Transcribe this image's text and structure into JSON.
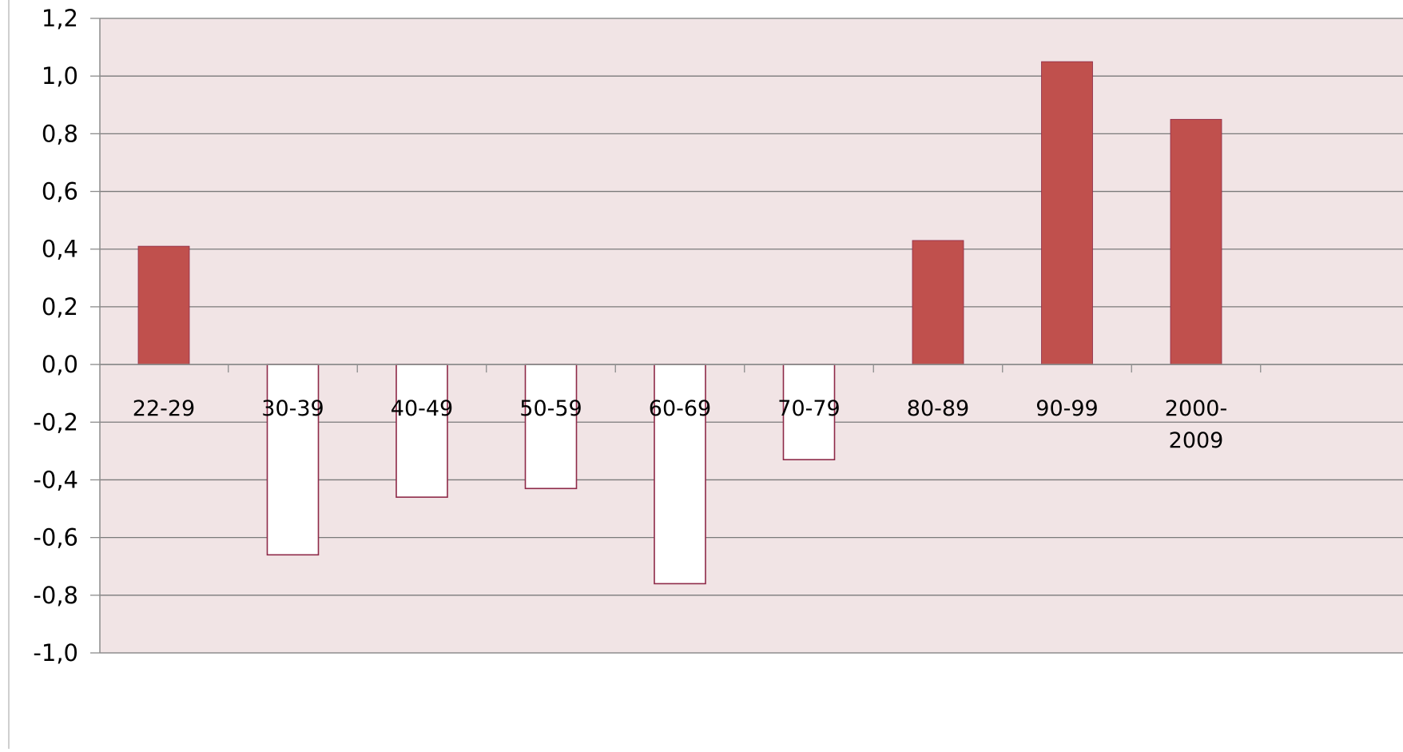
{
  "chart_data": {
    "type": "bar",
    "title": "",
    "xlabel": "",
    "ylabel": "",
    "categories": [
      "22-29",
      "30-39",
      "40-49",
      "50-59",
      "60-69",
      "70-79",
      "80-89",
      "90-99",
      "2000-\n2009"
    ],
    "values": [
      0.41,
      -0.66,
      -0.46,
      -0.43,
      -0.76,
      -0.33,
      0.43,
      1.05,
      0.85
    ],
    "ylim": [
      -1.0,
      1.2
    ],
    "ytick_labels": [
      "-1,0",
      "-0,8",
      "-0,6",
      "-0,4",
      "-0,2",
      "0,0",
      "0,2",
      "0,4",
      "0,6",
      "0,8",
      "1,0",
      "1,2"
    ],
    "grid": true,
    "legend": "none",
    "colors": {
      "plot_background": "#f1e4e5",
      "positive_fill": "#c0504d",
      "negative_fill": "#ffffff",
      "bar_outline": "#8e2a48",
      "gridline": "#7a7a7a",
      "axis": "#8c8c8c",
      "text": "#000000"
    }
  }
}
